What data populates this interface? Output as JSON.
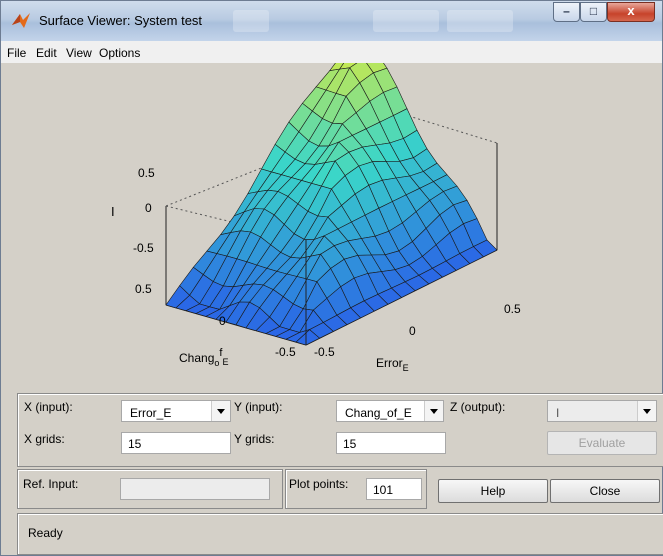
{
  "window": {
    "title": "Surface Viewer: System test",
    "controls": {
      "minimize": "–",
      "maximize": "□",
      "close": "x"
    }
  },
  "menu": [
    "File",
    "Edit",
    "View",
    "Options"
  ],
  "plot": {
    "z_axis_label": "I",
    "z_ticks": [
      "0.5",
      "0",
      "-0.5"
    ],
    "y_axis_label_main": "Chang",
    "y_axis_label_sub1": "o",
    "y_axis_label_mid": "f",
    "y_axis_label_sub2": "E",
    "x_axis_label_main": "Error",
    "x_axis_label_sub": "E",
    "y_ticks": [
      "0.5",
      "0",
      "-0.5"
    ],
    "x_ticks": [
      "-0.5",
      "0",
      "0.5"
    ],
    "colors": {
      "low": "#2a66e6",
      "mid": "#3ad6c9",
      "high": "#f3ee2a"
    }
  },
  "controls": {
    "x_input_label": "X (input):",
    "x_input_value": "Error_E",
    "y_input_label": "Y (input):",
    "y_input_value": "Chang_of_E",
    "z_output_label": "Z (output):",
    "z_output_value": "I",
    "x_grids_label": "X grids:",
    "x_grids_value": "15",
    "y_grids_label": "Y grids:",
    "y_grids_value": "15",
    "evaluate_label": "Evaluate",
    "ref_input_label": "Ref. Input:",
    "ref_input_value": "",
    "plot_points_label": "Plot points:",
    "plot_points_value": "101",
    "help_label": "Help",
    "close_label": "Close"
  },
  "status": {
    "text": "Ready"
  }
}
